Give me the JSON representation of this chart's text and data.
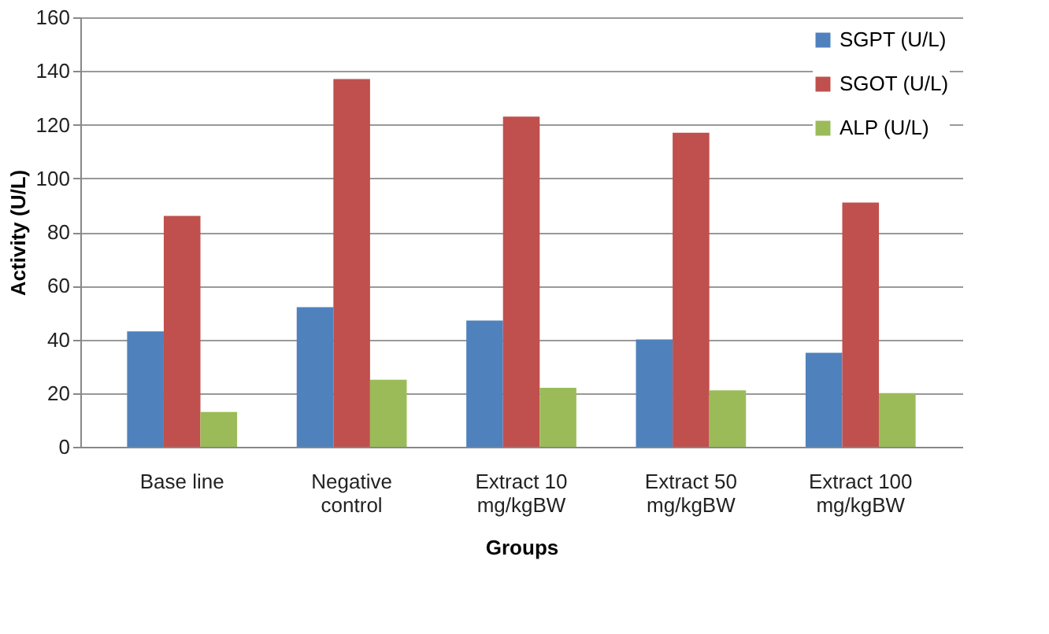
{
  "chart_data": {
    "type": "bar",
    "xlabel": "Groups",
    "ylabel": "Activity (U/L)",
    "categories": [
      "Base line",
      "Negative control",
      "Extract  10 mg/kgBW",
      "Extract 50 mg/kgBW",
      "Extract 100 mg/kgBW"
    ],
    "series": [
      {
        "name": "SGPT (U/L)",
        "color": "#4f81bd",
        "values": [
          43,
          52,
          47,
          40,
          35
        ]
      },
      {
        "name": "SGOT (U/L)",
        "color": "#c0504d",
        "values": [
          86,
          137,
          123,
          117,
          91
        ]
      },
      {
        "name": "ALP (U/L)",
        "color": "#9bbb59",
        "values": [
          13,
          25,
          22,
          21,
          20
        ]
      }
    ],
    "ylim": [
      0,
      160
    ],
    "yticks": [
      0,
      20,
      40,
      60,
      80,
      100,
      120,
      140,
      160
    ],
    "grid": "y",
    "legend": "top right"
  }
}
